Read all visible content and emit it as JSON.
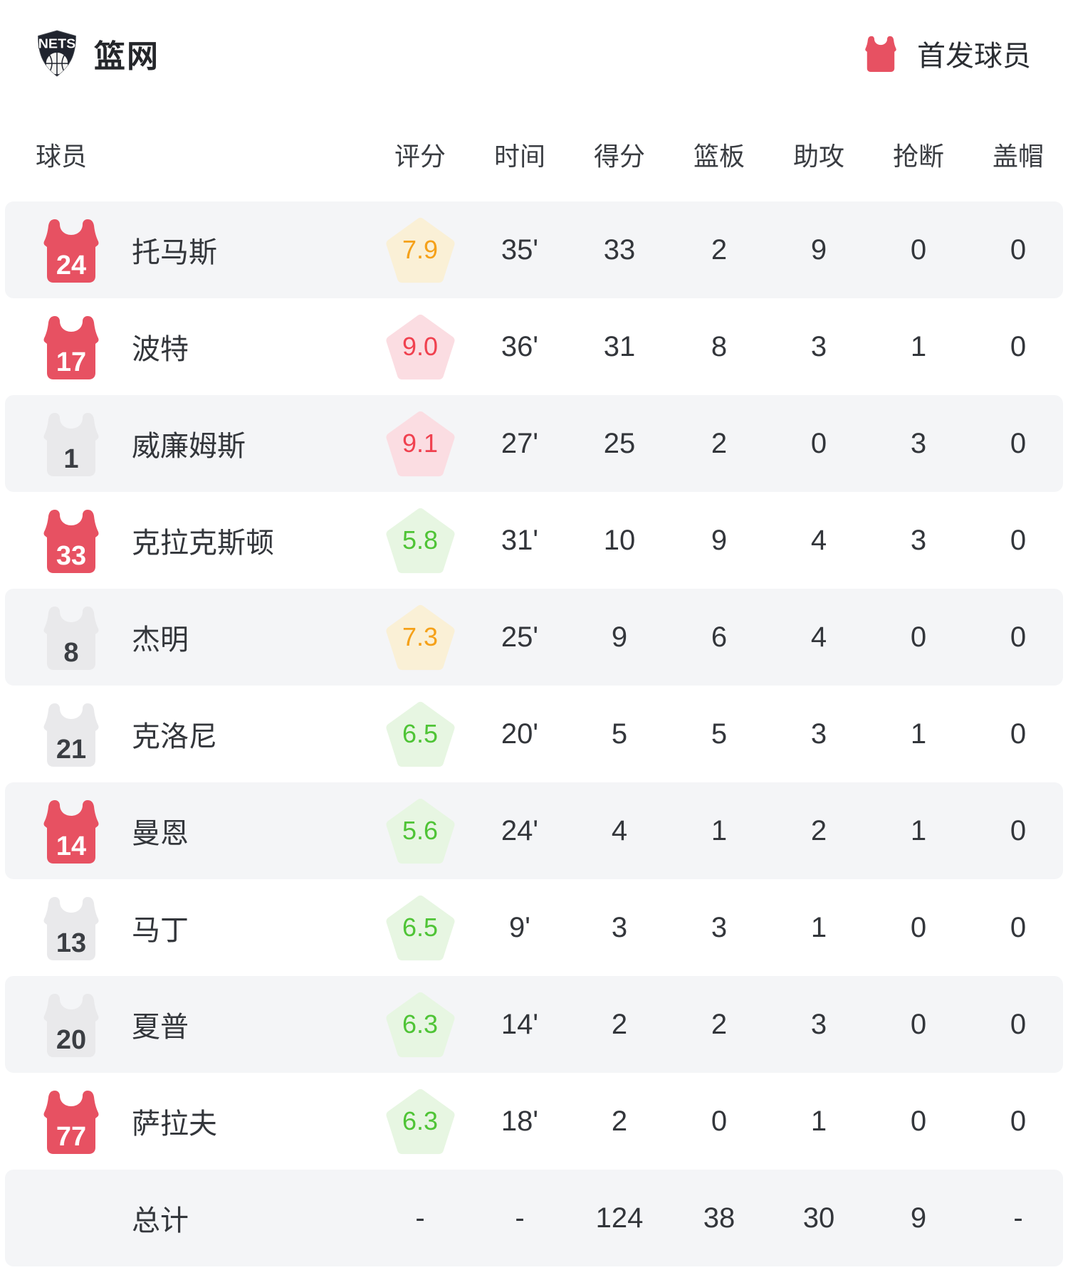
{
  "header": {
    "logo_text": "NETS",
    "team_name": "篮网",
    "legend_label": "首发球员"
  },
  "columns": [
    "球员",
    "评分",
    "时间",
    "得分",
    "篮板",
    "助攻",
    "抢断",
    "盖帽"
  ],
  "colors": {
    "starter_jersey": "#e75162",
    "bench_jersey": "#e9e9eb",
    "row_stripe": "#f4f5f7",
    "rating_gold_bg": "#faf0d6",
    "rating_gold_text": "#f5a119",
    "rating_red_bg": "#fbdde2",
    "rating_red_text": "#f0414f",
    "rating_green_bg": "#e7f6e2",
    "rating_green_text": "#4fc436"
  },
  "players": [
    {
      "number": "24",
      "starter": true,
      "name": "托马斯",
      "rating": "7.9",
      "rating_tone": "gold",
      "time": "35'",
      "points": "33",
      "rebounds": "2",
      "assists": "9",
      "steals": "0",
      "blocks": "0"
    },
    {
      "number": "17",
      "starter": true,
      "name": "波特",
      "rating": "9.0",
      "rating_tone": "red",
      "time": "36'",
      "points": "31",
      "rebounds": "8",
      "assists": "3",
      "steals": "1",
      "blocks": "0"
    },
    {
      "number": "1",
      "starter": false,
      "name": "威廉姆斯",
      "rating": "9.1",
      "rating_tone": "red",
      "time": "27'",
      "points": "25",
      "rebounds": "2",
      "assists": "0",
      "steals": "3",
      "blocks": "0"
    },
    {
      "number": "33",
      "starter": true,
      "name": "克拉克斯顿",
      "rating": "5.8",
      "rating_tone": "green",
      "time": "31'",
      "points": "10",
      "rebounds": "9",
      "assists": "4",
      "steals": "3",
      "blocks": "0"
    },
    {
      "number": "8",
      "starter": false,
      "name": "杰明",
      "rating": "7.3",
      "rating_tone": "gold",
      "time": "25'",
      "points": "9",
      "rebounds": "6",
      "assists": "4",
      "steals": "0",
      "blocks": "0"
    },
    {
      "number": "21",
      "starter": false,
      "name": "克洛尼",
      "rating": "6.5",
      "rating_tone": "green",
      "time": "20'",
      "points": "5",
      "rebounds": "5",
      "assists": "3",
      "steals": "1",
      "blocks": "0"
    },
    {
      "number": "14",
      "starter": true,
      "name": "曼恩",
      "rating": "5.6",
      "rating_tone": "green",
      "time": "24'",
      "points": "4",
      "rebounds": "1",
      "assists": "2",
      "steals": "1",
      "blocks": "0"
    },
    {
      "number": "13",
      "starter": false,
      "name": "马丁",
      "rating": "6.5",
      "rating_tone": "green",
      "time": "9'",
      "points": "3",
      "rebounds": "3",
      "assists": "1",
      "steals": "0",
      "blocks": "0"
    },
    {
      "number": "20",
      "starter": false,
      "name": "夏普",
      "rating": "6.3",
      "rating_tone": "green",
      "time": "14'",
      "points": "2",
      "rebounds": "2",
      "assists": "3",
      "steals": "0",
      "blocks": "0"
    },
    {
      "number": "77",
      "starter": true,
      "name": "萨拉夫",
      "rating": "6.3",
      "rating_tone": "green",
      "time": "18'",
      "points": "2",
      "rebounds": "0",
      "assists": "1",
      "steals": "0",
      "blocks": "0"
    }
  ],
  "totals": {
    "label": "总计",
    "rating": "-",
    "time": "-",
    "points": "124",
    "rebounds": "38",
    "assists": "30",
    "steals": "9",
    "blocks": "-"
  }
}
